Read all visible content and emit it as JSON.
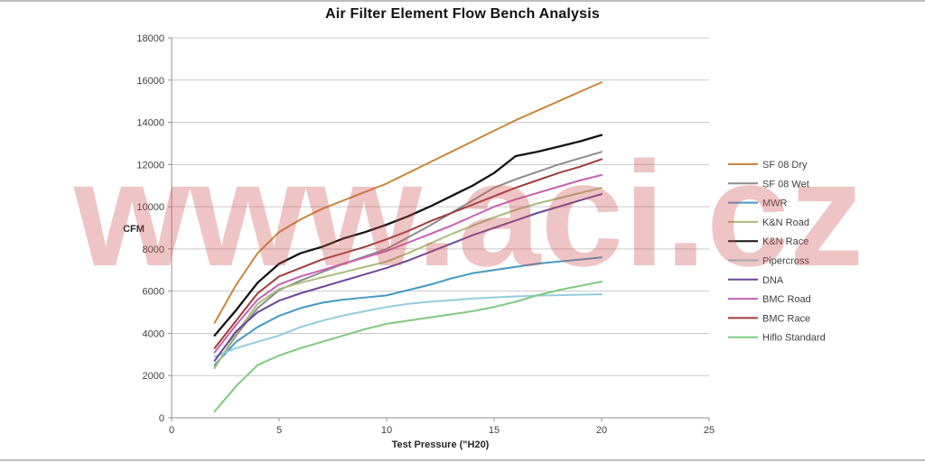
{
  "watermark": {
    "text": "www.aci.cz",
    "color": "rgba(205,82,82,0.34)"
  },
  "chart_data": {
    "type": "line",
    "title": "Air Filter Element Flow Bench Analysis",
    "xlabel": "Test Pressure (\"H20)",
    "ylabel": "CFM",
    "xlim": [
      0,
      25
    ],
    "ylim": [
      0,
      18000
    ],
    "x_ticks": [
      0,
      5,
      10,
      15,
      20,
      25
    ],
    "y_ticks": [
      0,
      2000,
      4000,
      6000,
      8000,
      10000,
      12000,
      14000,
      16000,
      18000
    ],
    "grid": "horizontal",
    "legend_position": "right",
    "x": [
      2,
      3,
      4,
      5,
      6,
      7,
      8,
      9,
      10,
      11,
      12,
      13,
      14,
      15,
      16,
      17,
      18,
      19,
      20
    ],
    "series": [
      {
        "name": "SF 08 Dry",
        "color": "#C8873C",
        "values": [
          4500,
          6300,
          7800,
          8800,
          9400,
          9900,
          10300,
          10700,
          11100,
          11600,
          12100,
          12600,
          13100,
          13600,
          14100,
          14550,
          15000,
          15450,
          15900
        ]
      },
      {
        "name": "SF 08 Wet",
        "color": "#8C8C8C",
        "values": [
          2400,
          3900,
          5200,
          6050,
          6500,
          6900,
          7300,
          7650,
          8000,
          8550,
          9100,
          9700,
          10300,
          10900,
          11300,
          11650,
          12000,
          12300,
          12600
        ]
      },
      {
        "name": "MWR",
        "color": "#4599C4",
        "values": [
          2500,
          3600,
          4300,
          4830,
          5200,
          5450,
          5600,
          5700,
          5800,
          6050,
          6300,
          6600,
          6850,
          7000,
          7150,
          7300,
          7400,
          7500,
          7600
        ]
      },
      {
        "name": "K&N Road",
        "color": "#A8BD7A",
        "values": [
          2350,
          4000,
          5400,
          6100,
          6400,
          6650,
          6900,
          7150,
          7400,
          7800,
          8250,
          8700,
          9100,
          9500,
          9850,
          10150,
          10400,
          10650,
          10900
        ]
      },
      {
        "name": "K&N Race",
        "color": "#121212",
        "values": [
          3900,
          5100,
          6400,
          7300,
          7800,
          8100,
          8500,
          8800,
          9150,
          9550,
          10000,
          10500,
          11000,
          11600,
          12400,
          12600,
          12850,
          13100,
          13400
        ]
      },
      {
        "name": "Pipercross",
        "color": "#92CDDC",
        "values": [
          2900,
          3300,
          3600,
          3900,
          4300,
          4600,
          4850,
          5050,
          5250,
          5400,
          5500,
          5570,
          5650,
          5700,
          5750,
          5790,
          5810,
          5830,
          5850
        ]
      },
      {
        "name": "DNA",
        "color": "#6B4799",
        "values": [
          2700,
          4100,
          5000,
          5550,
          5900,
          6200,
          6500,
          6800,
          7100,
          7450,
          7850,
          8250,
          8650,
          9000,
          9350,
          9700,
          10000,
          10300,
          10600
        ]
      },
      {
        "name": "BMC Road",
        "color": "#C75FB5",
        "values": [
          3100,
          4400,
          5600,
          6320,
          6700,
          7000,
          7300,
          7600,
          7900,
          8300,
          8700,
          9100,
          9550,
          10000,
          10350,
          10650,
          10950,
          11250,
          11500
        ]
      },
      {
        "name": "BMC Race",
        "color": "#A03C3C",
        "values": [
          3300,
          4600,
          5900,
          6700,
          7100,
          7500,
          7800,
          8100,
          8460,
          8850,
          9300,
          9700,
          10100,
          10500,
          10900,
          11250,
          11600,
          11900,
          12250
        ]
      },
      {
        "name": "Hiflo Standard",
        "color": "#7FC97F",
        "values": [
          300,
          1500,
          2500,
          2950,
          3300,
          3600,
          3900,
          4200,
          4450,
          4600,
          4750,
          4900,
          5050,
          5250,
          5500,
          5800,
          6050,
          6250,
          6450
        ]
      }
    ]
  }
}
